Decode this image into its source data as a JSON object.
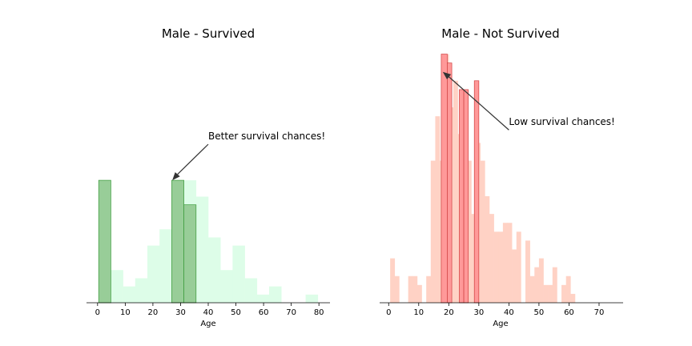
{
  "chart_data": [
    {
      "type": "bar",
      "title": "Male - Survived",
      "xlabel": "Age",
      "ylabel": "",
      "xlim": [
        -4,
        84
      ],
      "ylim": [
        0,
        15.5
      ],
      "xticks": [
        0,
        10,
        20,
        30,
        40,
        50,
        60,
        70,
        80
      ],
      "grid": false,
      "background_hist": {
        "color": "#ddfde8",
        "bin_width": 4.4,
        "start": 0.4,
        "counts": [
          7.5,
          2,
          1,
          1.5,
          3.5,
          4.5,
          3.5,
          7.5,
          6.5,
          4,
          2,
          3.5,
          1.5,
          0.5,
          1,
          0,
          0,
          0.5
        ]
      },
      "highlight_bars": {
        "color": "#98cd98",
        "edge": "#3a9a3a",
        "bars": [
          {
            "x0": 0.4,
            "x1": 4.8,
            "value": 7.5
          },
          {
            "x0": 26.8,
            "x1": 31.2,
            "value": 7.5
          },
          {
            "x0": 31.2,
            "x1": 35.6,
            "value": 6
          }
        ]
      },
      "annotation": {
        "text": "Better survival chances!",
        "xy": [
          27,
          7.5
        ],
        "xytext": [
          40,
          10
        ]
      }
    },
    {
      "type": "bar",
      "title": "Male - Not Survived",
      "xlabel": "Age",
      "ylabel": "",
      "xlim": [
        -3,
        78
      ],
      "ylim": [
        0,
        28.5
      ],
      "xticks": [
        0,
        10,
        20,
        30,
        40,
        50,
        60,
        70
      ],
      "grid": false,
      "background_hist": {
        "color": "#ffd2c5",
        "bin_width": 1.5,
        "start": 0.5,
        "counts": [
          5,
          3,
          0,
          0,
          3,
          3,
          2,
          0,
          3,
          16,
          21,
          16,
          28,
          22,
          25,
          19,
          20,
          16,
          10,
          18,
          16,
          12,
          10,
          8,
          8,
          9,
          9,
          6,
          8,
          0,
          7,
          3,
          4,
          5,
          2,
          2,
          4,
          0,
          2,
          3,
          1
        ]
      },
      "highlight_bars": {
        "color": "#ff9999",
        "edge": "#d04040",
        "bars": [
          {
            "x0": 17.5,
            "x1": 19.5,
            "value": 28
          },
          {
            "x0": 19.5,
            "x1": 21,
            "value": 27
          },
          {
            "x0": 23.5,
            "x1": 25,
            "value": 24
          },
          {
            "x0": 25,
            "x1": 26.5,
            "value": 24
          },
          {
            "x0": 28.5,
            "x1": 30,
            "value": 25
          }
        ]
      },
      "annotation": {
        "text": "Low survival chances!",
        "xy": [
          18,
          26
        ],
        "xytext": [
          40,
          20
        ]
      }
    }
  ]
}
